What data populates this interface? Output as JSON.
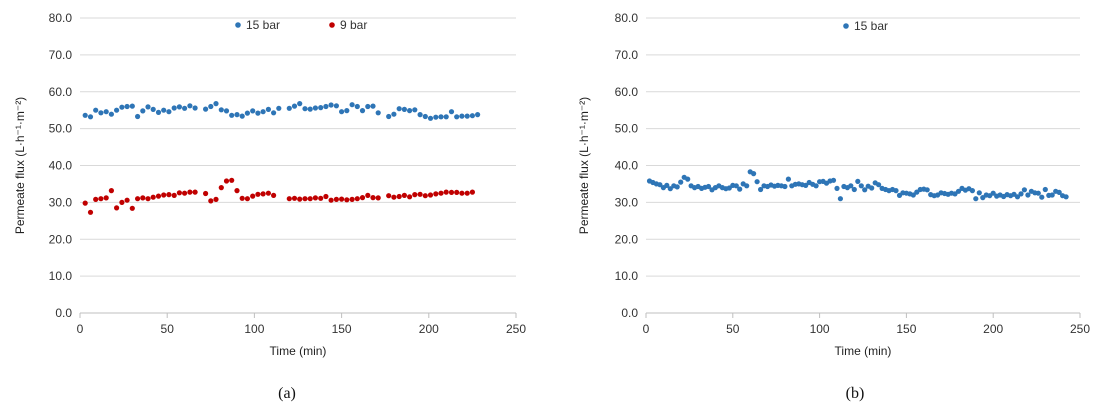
{
  "chart_data": [
    {
      "type": "scatter",
      "panel_label": "(a)",
      "xlabel": "Time (min)",
      "ylabel": "Permeate flux (L·h⁻¹·m⁻²)",
      "xlim": [
        0,
        250
      ],
      "ylim": [
        0,
        80
      ],
      "x_ticks": [
        "0",
        "50",
        "100",
        "150",
        "200",
        "250"
      ],
      "y_ticks": [
        "0.0",
        "10.0",
        "20.0",
        "30.0",
        "40.0",
        "50.0",
        "60.0",
        "70.0",
        "80.0"
      ],
      "grid": "horizontal",
      "legend": "top-center",
      "series": [
        {
          "name": "15 bar",
          "color": "#2E75B6",
          "x": [
            3,
            6,
            9,
            12,
            15,
            18,
            21,
            24,
            27,
            30,
            33,
            36,
            39,
            42,
            45,
            48,
            51,
            54,
            57,
            60,
            63,
            66,
            72,
            75,
            78,
            81,
            84,
            87,
            90,
            93,
            96,
            99,
            102,
            105,
            108,
            111,
            114,
            120,
            123,
            126,
            129,
            132,
            135,
            138,
            141,
            144,
            147,
            150,
            153,
            156,
            159,
            162,
            165,
            168,
            171,
            177,
            180,
            183,
            186,
            189,
            192,
            195,
            198,
            201,
            204,
            207,
            210,
            213,
            216,
            219,
            222,
            225,
            228
          ],
          "y": [
            53.6,
            53.2,
            55.0,
            54.3,
            54.6,
            53.9,
            55.0,
            55.8,
            56.0,
            56.1,
            53.3,
            54.8,
            55.9,
            55.2,
            54.4,
            55.0,
            54.6,
            55.6,
            55.9,
            55.5,
            56.2,
            55.6,
            55.3,
            56.0,
            56.8,
            55.1,
            54.8,
            53.6,
            53.8,
            53.4,
            54.2,
            54.8,
            54.2,
            54.6,
            55.2,
            54.3,
            55.5,
            55.5,
            56.1,
            56.8,
            55.4,
            55.3,
            55.6,
            55.7,
            56.0,
            56.4,
            56.2,
            54.6,
            54.9,
            56.5,
            56.0,
            54.9,
            56.0,
            56.1,
            54.3,
            53.3,
            53.9,
            55.4,
            55.2,
            54.9,
            55.1,
            53.8,
            53.3,
            52.8,
            53.1,
            53.2,
            53.2,
            54.6,
            53.2,
            53.4,
            53.4,
            53.5,
            53.8
          ]
        },
        {
          "name": "9 bar",
          "color": "#C00000",
          "x": [
            3,
            6,
            9,
            12,
            15,
            18,
            21,
            24,
            27,
            30,
            33,
            36,
            39,
            42,
            45,
            48,
            51,
            54,
            57,
            60,
            63,
            66,
            72,
            75,
            78,
            81,
            84,
            87,
            90,
            93,
            96,
            99,
            102,
            105,
            108,
            111,
            120,
            123,
            126,
            129,
            132,
            135,
            138,
            141,
            144,
            147,
            150,
            153,
            156,
            159,
            162,
            165,
            168,
            171,
            177,
            180,
            183,
            186,
            189,
            192,
            195,
            198,
            201,
            204,
            207,
            210,
            213,
            216,
            219,
            222,
            225
          ],
          "y": [
            29.8,
            27.3,
            30.8,
            31.0,
            31.2,
            33.2,
            28.5,
            30.0,
            30.6,
            28.4,
            31.0,
            31.2,
            31.0,
            31.4,
            31.7,
            32.0,
            32.1,
            31.9,
            32.6,
            32.5,
            32.8,
            32.8,
            32.4,
            30.4,
            30.8,
            34.0,
            35.8,
            36.0,
            33.2,
            31.1,
            31.0,
            31.7,
            32.2,
            32.3,
            32.5,
            31.9,
            31.0,
            31.1,
            30.9,
            31.0,
            31.0,
            31.2,
            31.1,
            31.6,
            30.6,
            30.8,
            30.9,
            30.7,
            30.8,
            31.0,
            31.3,
            31.9,
            31.3,
            31.2,
            31.8,
            31.4,
            31.6,
            31.9,
            31.5,
            32.1,
            32.2,
            31.8,
            32.0,
            32.3,
            32.5,
            32.8,
            32.7,
            32.7,
            32.5,
            32.5,
            32.8
          ]
        }
      ]
    },
    {
      "type": "scatter",
      "panel_label": "(b)",
      "xlabel": "Time (min)",
      "ylabel": "Permeate flux (L·h⁻¹·m⁻²)",
      "xlim": [
        0,
        250
      ],
      "ylim": [
        0,
        80
      ],
      "x_ticks": [
        "0",
        "50",
        "100",
        "150",
        "200",
        "250"
      ],
      "y_ticks": [
        "0.0",
        "10.0",
        "20.0",
        "30.0",
        "40.0",
        "50.0",
        "60.0",
        "70.0",
        "80.0"
      ],
      "grid": "horizontal",
      "legend": "top-center",
      "series": [
        {
          "name": "15 bar",
          "color": "#2E75B6",
          "x": [
            2,
            4,
            6,
            8,
            10,
            12,
            14,
            16,
            18,
            20,
            22,
            24,
            26,
            28,
            30,
            32,
            34,
            36,
            38,
            40,
            42,
            44,
            46,
            48,
            50,
            52,
            54,
            56,
            58,
            60,
            62,
            64,
            66,
            68,
            70,
            72,
            74,
            76,
            78,
            80,
            82,
            84,
            86,
            88,
            90,
            92,
            94,
            96,
            98,
            100,
            102,
            104,
            106,
            108,
            110,
            112,
            114,
            116,
            118,
            120,
            122,
            124,
            126,
            128,
            130,
            132,
            134,
            136,
            138,
            140,
            142,
            144,
            146,
            148,
            150,
            152,
            154,
            156,
            158,
            160,
            162,
            164,
            166,
            168,
            170,
            172,
            174,
            176,
            178,
            180,
            182,
            184,
            186,
            188,
            190,
            192,
            194,
            196,
            198,
            200,
            202,
            204,
            206,
            208,
            210,
            212,
            214,
            216,
            218,
            220,
            222,
            224,
            226,
            228,
            230,
            232,
            234,
            236,
            238,
            240,
            242
          ],
          "y": [
            35.8,
            35.4,
            35.0,
            34.8,
            34.0,
            34.6,
            33.7,
            34.5,
            34.2,
            35.5,
            36.8,
            36.3,
            34.5,
            34.0,
            34.3,
            33.8,
            34.1,
            34.3,
            33.4,
            34.0,
            34.5,
            34.0,
            33.7,
            33.9,
            34.6,
            34.5,
            33.6,
            35.0,
            34.5,
            38.3,
            37.8,
            35.6,
            33.5,
            34.5,
            34.3,
            34.7,
            34.4,
            34.6,
            34.5,
            34.3,
            36.3,
            34.5,
            34.9,
            35.0,
            34.8,
            34.6,
            35.4,
            34.9,
            34.5,
            35.6,
            35.7,
            35.2,
            35.8,
            36.0,
            33.8,
            31.0,
            34.3,
            34.0,
            34.5,
            33.5,
            35.7,
            34.5,
            33.4,
            34.4,
            33.9,
            35.3,
            34.8,
            33.8,
            33.5,
            33.2,
            33.5,
            33.2,
            31.9,
            32.6,
            32.5,
            32.3,
            32.0,
            32.8,
            33.5,
            33.6,
            33.4,
            32.1,
            31.8,
            32.0,
            32.6,
            32.4,
            32.2,
            32.5,
            32.3,
            33.0,
            33.8,
            33.3,
            33.7,
            33.2,
            31.0,
            32.6,
            31.3,
            32.0,
            31.8,
            32.5,
            31.7,
            32.0,
            31.6,
            32.1,
            31.8,
            32.2,
            31.5,
            32.3,
            33.4,
            32.0,
            33.0,
            32.6,
            32.5,
            31.4,
            33.5,
            31.9,
            32.0,
            33.0,
            32.7,
            31.8,
            31.5
          ]
        }
      ]
    }
  ]
}
